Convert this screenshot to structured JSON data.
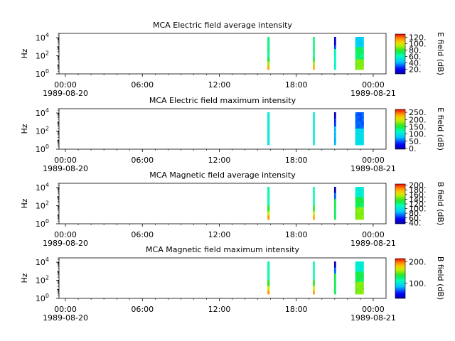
{
  "chart_data": [
    {
      "type": "heatmap",
      "title": "MCA  Electric field average intensity",
      "ylabel": "Hz",
      "colorbar_label": "E field (dB)",
      "colorbar_ticks": [
        "20.",
        "40.",
        "60.",
        "80.",
        "100.",
        "120."
      ],
      "colorbar_ticks_value": [
        20,
        40,
        60,
        80,
        100,
        120
      ],
      "colorbar_range": [
        5,
        130
      ],
      "y_ticks": [
        {
          "base": "10",
          "exp": "0"
        },
        {
          "base": "10",
          "exp": "2"
        },
        {
          "base": "10",
          "exp": "4"
        }
      ],
      "y_ticks_value": [
        1,
        100,
        10000
      ],
      "ylim": [
        1,
        30000
      ],
      "y_scale": "log",
      "x_ticks": [
        "00:00",
        "06:00",
        "12:00",
        "18:00",
        "00:00"
      ],
      "x_ticks_hours": [
        0,
        6,
        12,
        18,
        24
      ],
      "x_date_left": "1989-08-20",
      "x_date_right": "1989-08-21",
      "xlim_hours": [
        -0.5,
        25.0
      ],
      "strips": [
        {
          "start_hour": 15.75,
          "end_hour": 15.9,
          "pattern": "avg"
        },
        {
          "start_hour": 19.3,
          "end_hour": 19.42,
          "pattern": "avg"
        },
        {
          "start_hour": 20.95,
          "end_hour": 21.08,
          "pattern": "avgdark"
        },
        {
          "start_hour": 22.6,
          "end_hour": 23.25,
          "pattern": "avgwide"
        }
      ]
    },
    {
      "type": "heatmap",
      "title": "MCA  Electric field maximum intensity",
      "ylabel": "Hz",
      "colorbar_label": "E field (dB)",
      "colorbar_ticks": [
        "0.",
        "50.",
        "100.",
        "150.",
        "200.",
        "250."
      ],
      "colorbar_ticks_value": [
        0,
        50,
        100,
        150,
        200,
        250
      ],
      "colorbar_range": [
        -5,
        270
      ],
      "y_ticks": [
        {
          "base": "10",
          "exp": "0"
        },
        {
          "base": "10",
          "exp": "2"
        },
        {
          "base": "10",
          "exp": "4"
        }
      ],
      "y_ticks_value": [
        1,
        100,
        10000
      ],
      "ylim": [
        1,
        30000
      ],
      "y_scale": "log",
      "x_ticks": [
        "00:00",
        "06:00",
        "12:00",
        "18:00",
        "00:00"
      ],
      "x_ticks_hours": [
        0,
        6,
        12,
        18,
        24
      ],
      "x_date_left": "1989-08-20",
      "x_date_right": "1989-08-21",
      "xlim_hours": [
        -0.5,
        25.0
      ],
      "strips": [
        {
          "start_hour": 15.75,
          "end_hour": 15.9,
          "pattern": "max"
        },
        {
          "start_hour": 19.3,
          "end_hour": 19.42,
          "pattern": "max"
        },
        {
          "start_hour": 20.95,
          "end_hour": 21.08,
          "pattern": "maxdark"
        },
        {
          "start_hour": 22.6,
          "end_hour": 23.25,
          "pattern": "maxwide"
        }
      ]
    },
    {
      "type": "heatmap",
      "title": "MCA  Magnetic field average intensity",
      "ylabel": "Hz",
      "colorbar_label": "B field (dB)",
      "colorbar_ticks": [
        "40.",
        "60.",
        "80.",
        "100.",
        "120.",
        "140.",
        "160.",
        "180.",
        "200."
      ],
      "colorbar_ticks_value": [
        40,
        60,
        80,
        100,
        120,
        140,
        160,
        180,
        200
      ],
      "colorbar_range": [
        35,
        205
      ],
      "y_ticks": [
        {
          "base": "10",
          "exp": "0"
        },
        {
          "base": "10",
          "exp": "2"
        },
        {
          "base": "10",
          "exp": "4"
        }
      ],
      "y_ticks_value": [
        1,
        100,
        10000
      ],
      "ylim": [
        1,
        30000
      ],
      "y_scale": "log",
      "x_ticks": [
        "00:00",
        "06:00",
        "12:00",
        "18:00",
        "00:00"
      ],
      "x_ticks_hours": [
        0,
        6,
        12,
        18,
        24
      ],
      "x_date_left": "1989-08-20",
      "x_date_right": "1989-08-21",
      "xlim_hours": [
        -0.5,
        25.0
      ],
      "strips": [
        {
          "start_hour": 15.75,
          "end_hour": 15.9,
          "pattern": "mag"
        },
        {
          "start_hour": 19.3,
          "end_hour": 19.42,
          "pattern": "mag"
        },
        {
          "start_hour": 20.95,
          "end_hour": 21.08,
          "pattern": "magdark"
        },
        {
          "start_hour": 22.6,
          "end_hour": 23.25,
          "pattern": "magwide"
        }
      ]
    },
    {
      "type": "heatmap",
      "title": "MCA  Magnetic field maximum intensity",
      "ylabel": "Hz",
      "colorbar_label": "B field (dB)",
      "colorbar_ticks": [
        "100.",
        "200."
      ],
      "colorbar_ticks_value": [
        100,
        200
      ],
      "colorbar_range": [
        30,
        215
      ],
      "y_ticks": [
        {
          "base": "10",
          "exp": "0"
        },
        {
          "base": "10",
          "exp": "2"
        },
        {
          "base": "10",
          "exp": "4"
        }
      ],
      "y_ticks_value": [
        1,
        100,
        10000
      ],
      "ylim": [
        1,
        30000
      ],
      "y_scale": "log",
      "x_ticks": [
        "00:00",
        "06:00",
        "12:00",
        "18:00",
        "00:00"
      ],
      "x_ticks_hours": [
        0,
        6,
        12,
        18,
        24
      ],
      "x_date_left": "1989-08-20",
      "x_date_right": "1989-08-21",
      "xlim_hours": [
        -0.5,
        25.0
      ],
      "strips": [
        {
          "start_hour": 15.75,
          "end_hour": 15.9,
          "pattern": "mag"
        },
        {
          "start_hour": 19.3,
          "end_hour": 19.42,
          "pattern": "mag"
        },
        {
          "start_hour": 20.95,
          "end_hour": 21.08,
          "pattern": "magdark"
        },
        {
          "start_hour": 22.6,
          "end_hour": 23.25,
          "pattern": "magwide"
        }
      ]
    }
  ]
}
